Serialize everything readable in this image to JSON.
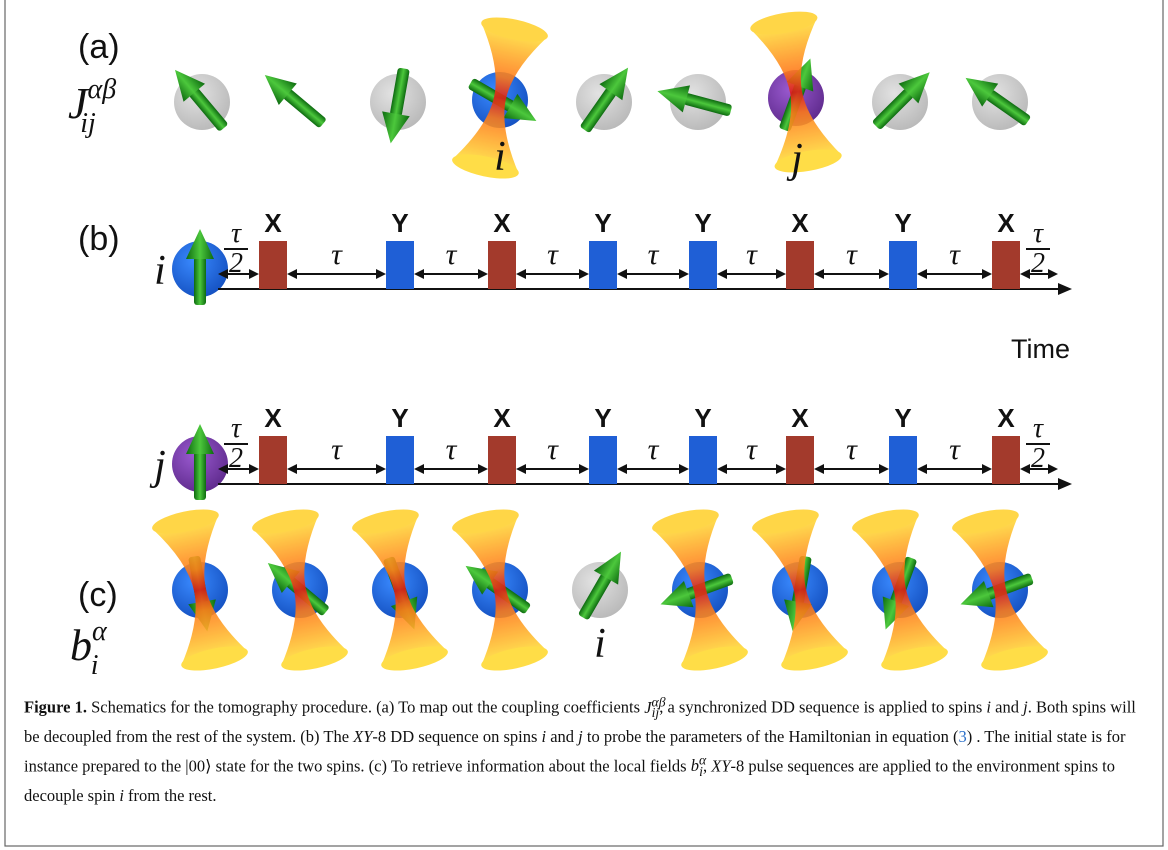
{
  "panel_a": {
    "label": "(a)",
    "symbol": {
      "base": "J",
      "sub": "ij",
      "sup": "αβ"
    },
    "spin_labels": [
      "i",
      "j"
    ]
  },
  "panel_b": {
    "label": "(b)",
    "axis_label": "Time",
    "rows": [
      {
        "spin": "i",
        "start": {
          "num": "τ",
          "den": "2"
        },
        "end": {
          "num": "τ",
          "den": "2"
        },
        "intervals": [
          "τ",
          "τ",
          "τ",
          "τ",
          "τ",
          "τ",
          "τ"
        ],
        "pulses": [
          {
            "label": "X",
            "color": "#a33a2c"
          },
          {
            "label": "Y",
            "color": "#1f5fd6"
          },
          {
            "label": "X",
            "color": "#a33a2c"
          },
          {
            "label": "Y",
            "color": "#1f5fd6"
          },
          {
            "label": "Y",
            "color": "#1f5fd6"
          },
          {
            "label": "X",
            "color": "#a33a2c"
          },
          {
            "label": "Y",
            "color": "#1f5fd6"
          },
          {
            "label": "X",
            "color": "#a33a2c"
          }
        ]
      },
      {
        "spin": "j",
        "start": {
          "num": "τ",
          "den": "2"
        },
        "end": {
          "num": "τ",
          "den": "2"
        },
        "intervals": [
          "τ",
          "τ",
          "τ",
          "τ",
          "τ",
          "τ",
          "τ"
        ],
        "pulses": [
          {
            "label": "X",
            "color": "#a33a2c"
          },
          {
            "label": "Y",
            "color": "#1f5fd6"
          },
          {
            "label": "X",
            "color": "#a33a2c"
          },
          {
            "label": "Y",
            "color": "#1f5fd6"
          },
          {
            "label": "Y",
            "color": "#1f5fd6"
          },
          {
            "label": "X",
            "color": "#a33a2c"
          },
          {
            "label": "Y",
            "color": "#1f5fd6"
          },
          {
            "label": "X",
            "color": "#a33a2c"
          }
        ]
      }
    ]
  },
  "panel_c": {
    "label": "(c)",
    "symbol": {
      "base": "b",
      "sub": "i",
      "sup": "α"
    },
    "spin_label": "i"
  },
  "caption": {
    "label": "Figure 1.",
    "segments": [
      " Schematics for the tomography procedure. (a) To map out the coupling coefficients ",
      {
        "base": "J",
        "sub": "ij",
        "sup": "αβ"
      },
      ", a synchronized DD sequence is applied to spins ",
      "i",
      " and ",
      "j",
      ". Both spins will be decoupled from the rest of the system. (b) The ",
      "XY",
      "-8 DD sequence on spins ",
      "i",
      " and ",
      "j",
      " to probe the parameters of the Hamiltonian in equation (",
      "3",
      ") . The initial state is for instance prepared to the |00⟩ state for the two spins. (c) To retrieve information about the local fields ",
      {
        "base": "b",
        "sub": "i",
        "sup": "α"
      },
      ", ",
      "XY",
      "-8 pulse sequences are applied to the environment spins to decouple spin ",
      "i",
      " from the rest."
    ]
  }
}
